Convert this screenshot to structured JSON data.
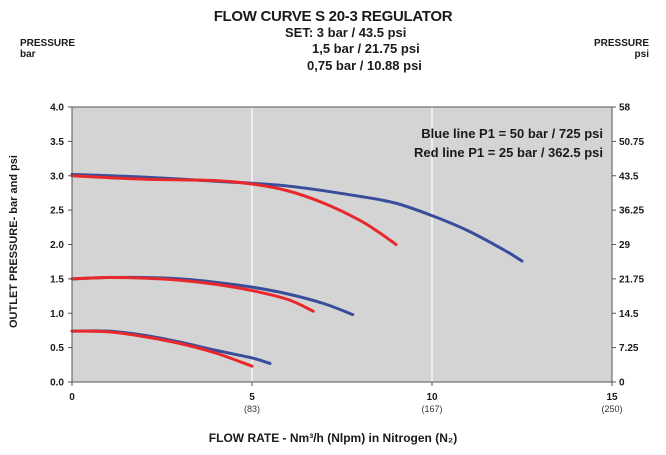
{
  "title": "FLOW CURVE S 20-3 REGULATOR",
  "set_lines": [
    "SET: 3 bar / 43.5 psi",
    "1,5 bar / 21.75 psi",
    "0,75 bar / 10.88 psi"
  ],
  "left_axis_head": [
    "PRESSURE",
    "bar"
  ],
  "right_axis_head": [
    "PRESSURE",
    "psi"
  ],
  "y_axis_label": "OUTLET PRESSURE-   bar and psi",
  "x_axis_label": "FLOW RATE - Nm³/h (Nlpm) in Nitrogen (N₂)",
  "legend": [
    "Blue line P1 = 50 bar / 725 psi",
    "Red line P1 = 25 bar / 362.5 psi"
  ],
  "colors": {
    "plot_bg": "#d4d4d4",
    "blue": "#3a4d9b",
    "red": "#e8282b",
    "grid": "#ffffff"
  },
  "chart_data": {
    "type": "line",
    "xlim": [
      0,
      15
    ],
    "ylim": [
      0,
      4.0
    ],
    "y_ticks": [
      "0.0",
      "0.5",
      "1.0",
      "1.5",
      "2.0",
      "2.5",
      "3.0",
      "3.5",
      "4.0"
    ],
    "y2_ticks": [
      "0",
      "7.25",
      "14.5",
      "21.75",
      "29",
      "36.25",
      "43.5",
      "50.75",
      "58"
    ],
    "x_ticks": [
      {
        "value": 0,
        "label": "0",
        "sub": ""
      },
      {
        "value": 5,
        "label": "5",
        "sub": "(83)"
      },
      {
        "value": 10,
        "label": "10",
        "sub": "(167)"
      },
      {
        "value": 15,
        "label": "15",
        "sub": "(250)"
      }
    ],
    "grid": "vertical at 5 and 10",
    "series": [
      {
        "name": "Blue line P1 = 50 bar / 725 psi",
        "color": "blue",
        "set": "3 bar",
        "points": [
          [
            0,
            3.02
          ],
          [
            2,
            2.98
          ],
          [
            4,
            2.92
          ],
          [
            6,
            2.85
          ],
          [
            8,
            2.7
          ],
          [
            9,
            2.6
          ],
          [
            10,
            2.42
          ],
          [
            11,
            2.2
          ],
          [
            12,
            1.92
          ],
          [
            12.5,
            1.76
          ]
        ]
      },
      {
        "name": "Red line P1 = 25 bar / 362.5 psi",
        "color": "red",
        "set": "3 bar",
        "points": [
          [
            0,
            3.0
          ],
          [
            2,
            2.95
          ],
          [
            4,
            2.93
          ],
          [
            5,
            2.88
          ],
          [
            6,
            2.78
          ],
          [
            7,
            2.6
          ],
          [
            8,
            2.35
          ],
          [
            8.6,
            2.15
          ],
          [
            9,
            2.0
          ]
        ]
      },
      {
        "name": "Blue line P1 = 50 bar / 725 psi",
        "color": "blue",
        "set": "1,5 bar",
        "points": [
          [
            0,
            1.5
          ],
          [
            1,
            1.52
          ],
          [
            2,
            1.52
          ],
          [
            3,
            1.5
          ],
          [
            4,
            1.45
          ],
          [
            5,
            1.38
          ],
          [
            6,
            1.28
          ],
          [
            7,
            1.14
          ],
          [
            7.8,
            0.98
          ]
        ]
      },
      {
        "name": "Red line P1 = 25 bar / 362.5 psi",
        "color": "red",
        "set": "1,5 bar",
        "points": [
          [
            0,
            1.5
          ],
          [
            1,
            1.52
          ],
          [
            2,
            1.51
          ],
          [
            3,
            1.48
          ],
          [
            4,
            1.42
          ],
          [
            5,
            1.33
          ],
          [
            6,
            1.2
          ],
          [
            6.7,
            1.03
          ]
        ]
      },
      {
        "name": "Blue line P1 = 50 bar / 725 psi",
        "color": "blue",
        "set": "0,75 bar",
        "points": [
          [
            0,
            0.74
          ],
          [
            1,
            0.74
          ],
          [
            2,
            0.68
          ],
          [
            3,
            0.58
          ],
          [
            4,
            0.46
          ],
          [
            5,
            0.35
          ],
          [
            5.5,
            0.27
          ]
        ]
      },
      {
        "name": "Red line P1 = 25 bar / 362.5 psi",
        "color": "red",
        "set": "0,75 bar",
        "points": [
          [
            0,
            0.74
          ],
          [
            1,
            0.73
          ],
          [
            2,
            0.66
          ],
          [
            3,
            0.56
          ],
          [
            4,
            0.42
          ],
          [
            5,
            0.23
          ]
        ]
      }
    ]
  }
}
